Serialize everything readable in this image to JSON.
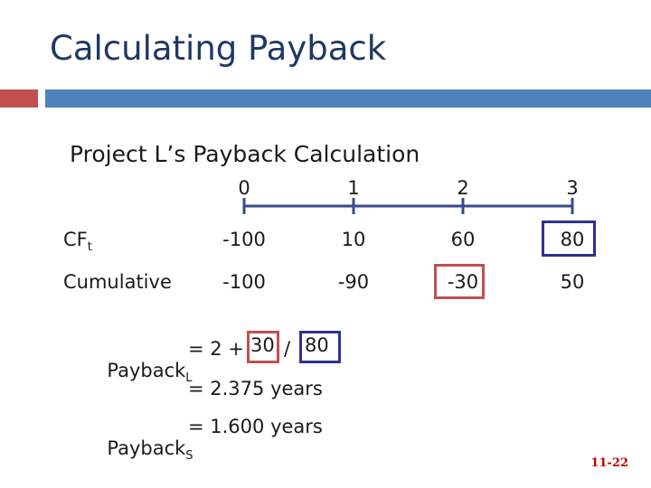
{
  "slide": {
    "title": "Calculating Payback",
    "subtitle": "Project L’s Payback Calculation",
    "page_number": "11-22"
  },
  "timeline": {
    "periods": [
      "0",
      "1",
      "2",
      "3"
    ]
  },
  "rows": {
    "cf": {
      "label": "CF",
      "label_sub": "t",
      "values": [
        "-100",
        "10",
        "60",
        "80"
      ]
    },
    "cumulative": {
      "label": "Cumulative",
      "values": [
        "-100",
        "-90",
        "-30",
        "50"
      ]
    }
  },
  "payback_l": {
    "label": "Payback",
    "label_sub": "L",
    "equals_prefix": "= 2 +",
    "numerator": "30",
    "divider": "/",
    "denominator": "80",
    "result": "= 2.375 years"
  },
  "payback_s": {
    "label": "Payback",
    "label_sub": "S",
    "result": "= 1.600 years"
  },
  "colors": {
    "title": "#1f3864",
    "accent_red": "#c0504d",
    "accent_blue": "#4f81bd",
    "timeline": "#3a4a8c",
    "highlight_blue": "#2e3192",
    "highlight_red": "#c0504d"
  }
}
